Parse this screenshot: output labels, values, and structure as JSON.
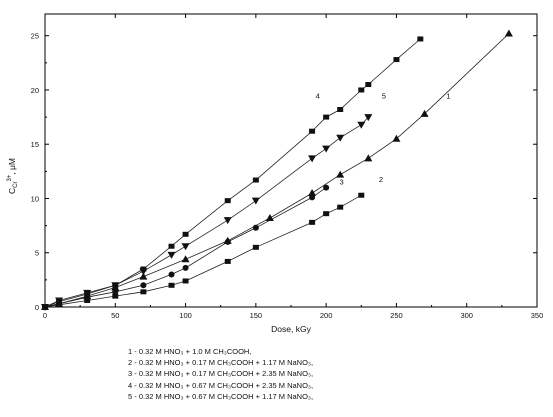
{
  "chart_data": {
    "type": "scatter",
    "xlabel": "Dose, kGy",
    "ylabel": "C",
    "ylabel_sup": "3+",
    "ylabel_sub": "Cr",
    "ylabel_unit": ", μM",
    "xlim": [
      0,
      350
    ],
    "ylim": [
      0,
      27
    ],
    "xticks": [
      0,
      50,
      100,
      150,
      200,
      250,
      300,
      350
    ],
    "yticks": [
      0,
      5,
      10,
      15,
      20,
      25
    ],
    "grid": false,
    "legend_position": "bottom",
    "series": [
      {
        "name": "1",
        "marker": "triangle-up",
        "x": [
          0,
          10,
          30,
          50,
          70,
          100,
          130,
          160,
          190,
          210,
          230,
          250,
          270,
          330
        ],
        "y": [
          0,
          0.3,
          1.0,
          1.8,
          2.8,
          4.4,
          6.1,
          8.2,
          10.5,
          12.2,
          13.7,
          15.5,
          17.8,
          25.2
        ]
      },
      {
        "name": "2",
        "marker": "square",
        "x": [
          0,
          10,
          30,
          50,
          70,
          90,
          100,
          130,
          150,
          190,
          200,
          210,
          225
        ],
        "y": [
          0,
          0.2,
          0.6,
          1.0,
          1.4,
          2.0,
          2.4,
          4.2,
          5.5,
          7.8,
          8.6,
          9.2,
          10.3
        ]
      },
      {
        "name": "3",
        "marker": "circle",
        "x": [
          0,
          10,
          30,
          50,
          70,
          90,
          100,
          130,
          150,
          190,
          200
        ],
        "y": [
          0,
          0.3,
          0.9,
          1.4,
          2.0,
          3.0,
          3.6,
          6.0,
          7.3,
          10.1,
          11.0
        ]
      },
      {
        "name": "4",
        "marker": "square",
        "x": [
          0,
          10,
          30,
          50,
          70,
          90,
          100,
          130,
          150,
          190,
          200,
          210,
          225,
          230,
          250,
          267
        ],
        "y": [
          0,
          0.5,
          1.2,
          2.0,
          3.5,
          5.6,
          6.7,
          9.8,
          11.7,
          16.2,
          17.5,
          18.2,
          20.0,
          20.5,
          22.8,
          24.7
        ]
      },
      {
        "name": "5",
        "marker": "triangle-down",
        "x": [
          0,
          10,
          30,
          50,
          70,
          90,
          100,
          130,
          150,
          190,
          200,
          210,
          225,
          230
        ],
        "y": [
          0,
          0.6,
          1.3,
          2.0,
          3.3,
          4.8,
          5.6,
          8.0,
          9.8,
          13.7,
          14.6,
          15.6,
          16.8,
          17.5
        ]
      }
    ],
    "curve_labels": [
      {
        "text": "1",
        "x": 287,
        "y": 19.2
      },
      {
        "text": "2",
        "x": 239,
        "y": 11.5
      },
      {
        "text": "3",
        "x": 211,
        "y": 11.3
      },
      {
        "text": "4",
        "x": 194,
        "y": 19.2
      },
      {
        "text": "5",
        "x": 241,
        "y": 19.2
      }
    ],
    "legend": [
      "1 - 0.32 M HNO₃ + 1.0 M CH₃COOH,",
      "2 - 0.32 M HNO₃ + 0.17 M CH₃COOH + 1.17 M NaNO₃,",
      "3 - 0.32 M HNO₃ + 0.17 M CH₃COOH + 2.35 M NaNO₃,",
      "4 - 0.32 M HNO₃ + 0.67 M CH₃COOH + 2.35 M NaNO₃,",
      "5 - 0.32 M HNO₃ + 0.67 M CH₃COOH + 1.17 M NaNO₃,"
    ]
  }
}
